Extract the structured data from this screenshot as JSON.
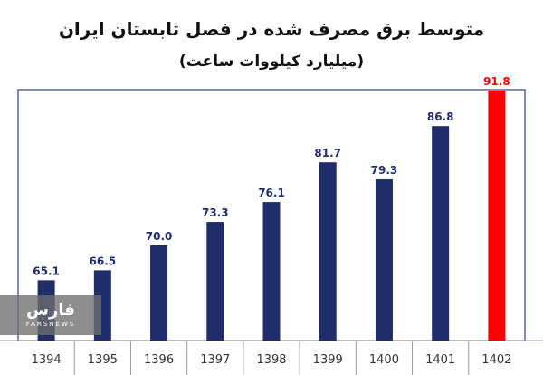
{
  "chart_data": {
    "type": "bar",
    "title": "متوسط برق مصرف شده در فصل تابستان ایران",
    "subtitle": "(میلیارد کیلووات ساعت)",
    "categories": [
      "1394",
      "1395",
      "1396",
      "1397",
      "1398",
      "1399",
      "1400",
      "1401",
      "1402"
    ],
    "values": [
      65.1,
      66.5,
      70.0,
      73.3,
      76.1,
      81.7,
      79.3,
      86.8,
      91.8
    ],
    "value_labels": [
      "65.1",
      "66.5",
      "70.0",
      "73.3",
      "76.1",
      "81.7",
      "79.3",
      "86.8",
      "91.8"
    ],
    "ylim": [
      56.6,
      91.8
    ],
    "grid": false,
    "colors": {
      "bar": "#1f2d6b",
      "highlight_bar": "#ff0000",
      "frame": "#2c3e86",
      "axis": "#999999"
    },
    "highlight_index": 8
  },
  "watermark": {
    "brand_fa": "فارس",
    "brand_en": "FARSNEWS"
  }
}
